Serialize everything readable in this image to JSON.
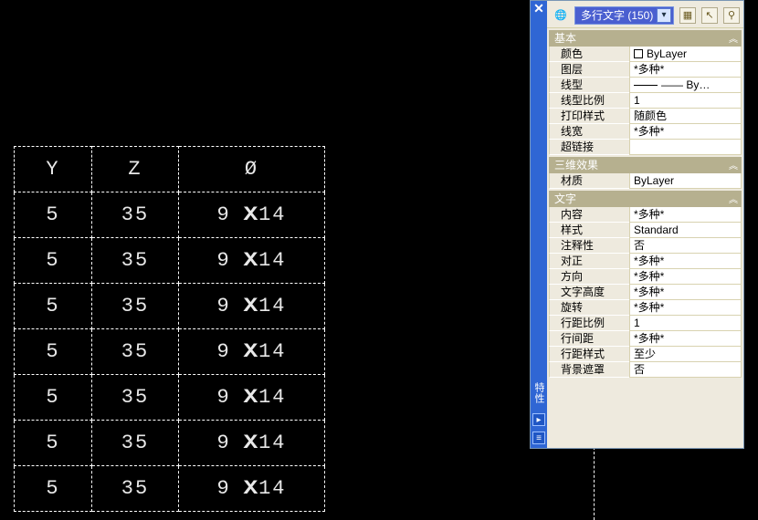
{
  "cad_table": {
    "headers": [
      "Y",
      "Z",
      "Ø"
    ],
    "rows": [
      [
        "5",
        "35",
        {
          "pre": "9",
          "post": "14"
        }
      ],
      [
        "5",
        "35",
        {
          "pre": "9",
          "post": "14"
        }
      ],
      [
        "5",
        "35",
        {
          "pre": "9",
          "post": "14"
        }
      ],
      [
        "5",
        "35",
        {
          "pre": "9",
          "post": "14"
        }
      ],
      [
        "5",
        "35",
        {
          "pre": "9",
          "post": "14"
        }
      ],
      [
        "5",
        "35",
        {
          "pre": "9",
          "post": "14"
        }
      ],
      [
        "5",
        "35",
        {
          "pre": "9",
          "post": "14"
        }
      ]
    ]
  },
  "palette": {
    "bar_label": "特性",
    "selector_text": "多行文字 (150)",
    "sections": [
      {
        "title": "基本",
        "rows": [
          {
            "k": "颜色",
            "v": "ByLayer",
            "swatch": true
          },
          {
            "k": "图层",
            "v": "*多种*"
          },
          {
            "k": "线型",
            "v": "—— By…",
            "line": true
          },
          {
            "k": "线型比例",
            "v": "1"
          },
          {
            "k": "打印样式",
            "v": "随颜色"
          },
          {
            "k": "线宽",
            "v": "*多种*"
          },
          {
            "k": "超链接",
            "v": ""
          }
        ]
      },
      {
        "title": "三维效果",
        "rows": [
          {
            "k": "材质",
            "v": "ByLayer"
          }
        ]
      },
      {
        "title": "文字",
        "rows": [
          {
            "k": "内容",
            "v": "*多种*"
          },
          {
            "k": "样式",
            "v": "Standard"
          },
          {
            "k": "注释性",
            "v": "否"
          },
          {
            "k": "对正",
            "v": "*多种*"
          },
          {
            "k": "方向",
            "v": "*多种*"
          },
          {
            "k": "文字高度",
            "v": "*多种*"
          },
          {
            "k": "旋转",
            "v": "*多种*"
          },
          {
            "k": "行距比例",
            "v": "1"
          },
          {
            "k": "行间距",
            "v": "*多种*"
          },
          {
            "k": "行距样式",
            "v": "至少"
          },
          {
            "k": "背景遮罩",
            "v": "否"
          }
        ]
      }
    ]
  }
}
